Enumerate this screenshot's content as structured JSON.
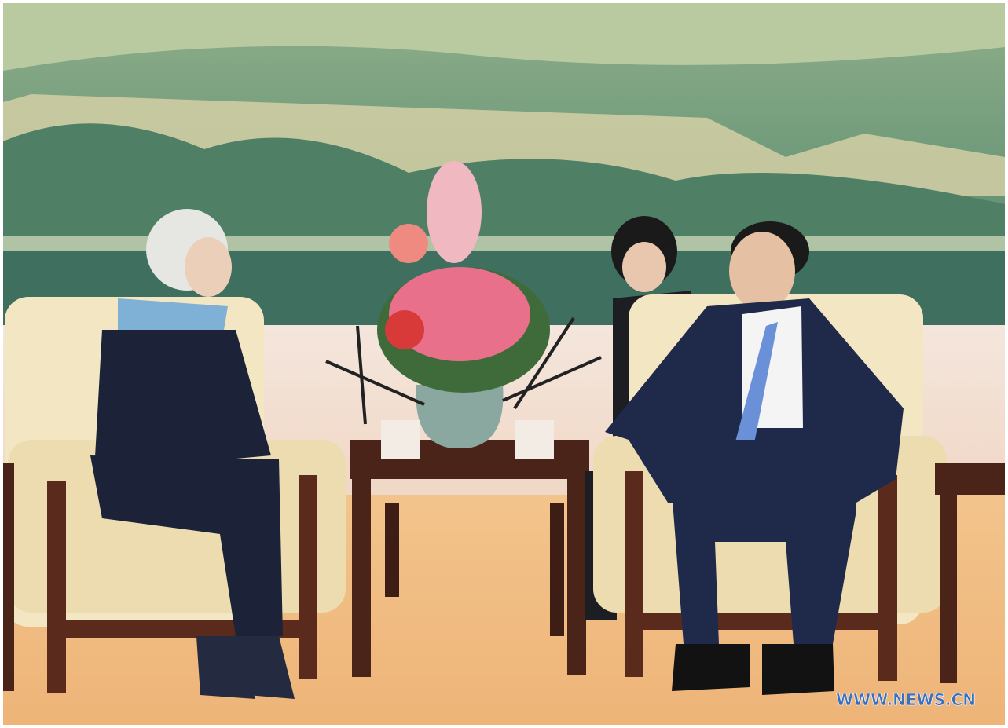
{
  "watermark": "WWW.NEWS.CN"
}
